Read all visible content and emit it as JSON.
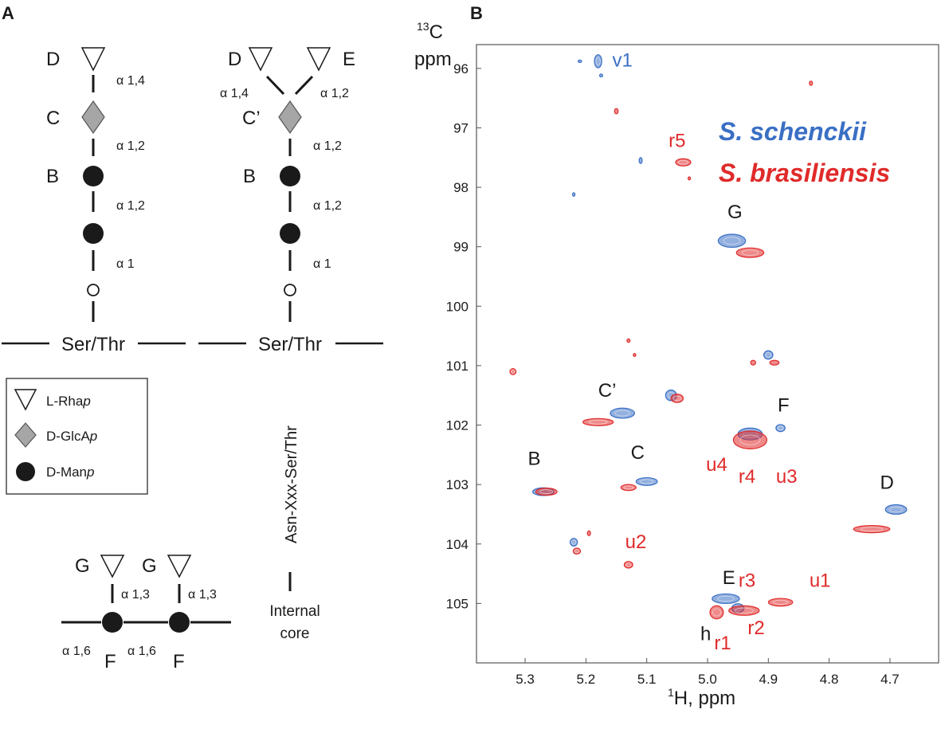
{
  "panel_a": {
    "label": "A",
    "left_structure": {
      "residues": [
        "D",
        "C",
        "B"
      ],
      "links": [
        "α 1,4",
        "α 1,2",
        "α 1,2",
        "α 1"
      ],
      "base": "Ser/Thr"
    },
    "right_structure": {
      "residues": [
        "D",
        "E",
        "C’",
        "B"
      ],
      "links": [
        "α 1,4",
        "α 1,2",
        "α 1,2",
        "α 1,2",
        "α 1"
      ],
      "base": "Ser/Thr"
    },
    "legend": [
      {
        "symbol": "triangle-icon",
        "pre": "L-Rha",
        "italic": "p"
      },
      {
        "symbol": "diamond-icon",
        "pre": "D-GlcA",
        "italic": "p"
      },
      {
        "symbol": "circle-icon",
        "pre": "D-Man",
        "italic": "p"
      }
    ],
    "nglycan": {
      "vertical_label": "Asn-Xxx-Ser/Thr",
      "core_line1": "Internal",
      "core_line2": "core",
      "residues": [
        "G",
        "G",
        "F",
        "F"
      ],
      "links": [
        "α 1,3",
        "α 1,3",
        "α 1,6",
        "α 1,6"
      ]
    }
  },
  "panel_b": {
    "label": "B",
    "chart_data": {
      "type": "scatter",
      "title": "",
      "xlabel_sup": "1",
      "xlabel": "H, ppm",
      "ylabel_sup": "13",
      "ylabel_line1": "C",
      "ylabel_line2": "ppm",
      "xlim": [
        5.38,
        4.62
      ],
      "ylim": [
        95.6,
        106.0
      ],
      "x_ticks": [
        "5.3",
        "5.2",
        "5.1",
        "5.0",
        "4.9",
        "4.8",
        "4.7"
      ],
      "x_tick_values": [
        5.3,
        5.2,
        5.1,
        5.0,
        4.9,
        4.8,
        4.7
      ],
      "y_ticks": [
        "96",
        "97",
        "98",
        "99",
        "100",
        "101",
        "102",
        "103",
        "104",
        "105"
      ],
      "y_tick_values": [
        96,
        97,
        98,
        99,
        100,
        101,
        102,
        103,
        104,
        105
      ],
      "colors": {
        "schenckii": "#3a6fc4",
        "brasiliensis": "#e02a2a",
        "label": "#1a1a1a"
      },
      "legend": [
        "S. schenckii",
        "S. brasiliensis"
      ],
      "series": [
        {
          "name": "S. schenckii",
          "color_key": "schenckii",
          "peaks": [
            {
              "x": 5.18,
              "y": 95.88,
              "w": 0.012,
              "h": 0.22
            },
            {
              "x": 5.21,
              "y": 95.88,
              "w": 0.006,
              "h": 0.04
            },
            {
              "x": 5.175,
              "y": 96.12,
              "w": 0.005,
              "h": 0.05
            },
            {
              "x": 5.11,
              "y": 97.55,
              "w": 0.005,
              "h": 0.1
            },
            {
              "x": 5.22,
              "y": 98.12,
              "w": 0.004,
              "h": 0.06
            },
            {
              "x": 4.96,
              "y": 98.9,
              "w": 0.045,
              "h": 0.22
            },
            {
              "x": 4.9,
              "y": 100.82,
              "w": 0.015,
              "h": 0.14
            },
            {
              "x": 5.14,
              "y": 101.8,
              "w": 0.04,
              "h": 0.17
            },
            {
              "x": 5.06,
              "y": 101.5,
              "w": 0.018,
              "h": 0.18
            },
            {
              "x": 4.93,
              "y": 102.15,
              "w": 0.04,
              "h": 0.2
            },
            {
              "x": 4.88,
              "y": 102.05,
              "w": 0.015,
              "h": 0.12
            },
            {
              "x": 5.27,
              "y": 103.12,
              "w": 0.035,
              "h": 0.13
            },
            {
              "x": 5.1,
              "y": 102.95,
              "w": 0.035,
              "h": 0.13
            },
            {
              "x": 4.69,
              "y": 103.42,
              "w": 0.035,
              "h": 0.16
            },
            {
              "x": 5.22,
              "y": 103.97,
              "w": 0.012,
              "h": 0.13
            },
            {
              "x": 4.97,
              "y": 104.92,
              "w": 0.045,
              "h": 0.16
            },
            {
              "x": 4.95,
              "y": 105.08,
              "w": 0.02,
              "h": 0.15
            }
          ]
        },
        {
          "name": "S. brasiliensis",
          "color_key": "brasiliensis",
          "peaks": [
            {
              "x": 4.83,
              "y": 96.25,
              "w": 0.005,
              "h": 0.07
            },
            {
              "x": 5.15,
              "y": 96.72,
              "w": 0.006,
              "h": 0.09
            },
            {
              "x": 5.04,
              "y": 97.58,
              "w": 0.025,
              "h": 0.12
            },
            {
              "x": 5.03,
              "y": 97.85,
              "w": 0.004,
              "h": 0.05
            },
            {
              "x": 4.93,
              "y": 99.1,
              "w": 0.045,
              "h": 0.16
            },
            {
              "x": 4.925,
              "y": 100.95,
              "w": 0.008,
              "h": 0.08
            },
            {
              "x": 4.89,
              "y": 100.95,
              "w": 0.015,
              "h": 0.08
            },
            {
              "x": 5.32,
              "y": 101.1,
              "w": 0.01,
              "h": 0.1
            },
            {
              "x": 5.13,
              "y": 100.58,
              "w": 0.005,
              "h": 0.06
            },
            {
              "x": 5.12,
              "y": 100.82,
              "w": 0.004,
              "h": 0.05
            },
            {
              "x": 5.05,
              "y": 101.55,
              "w": 0.02,
              "h": 0.14
            },
            {
              "x": 5.18,
              "y": 101.95,
              "w": 0.05,
              "h": 0.12
            },
            {
              "x": 4.93,
              "y": 102.25,
              "w": 0.055,
              "h": 0.3
            },
            {
              "x": 5.265,
              "y": 103.12,
              "w": 0.035,
              "h": 0.12
            },
            {
              "x": 5.13,
              "y": 103.05,
              "w": 0.025,
              "h": 0.1
            },
            {
              "x": 4.73,
              "y": 103.75,
              "w": 0.06,
              "h": 0.12
            },
            {
              "x": 5.195,
              "y": 103.82,
              "w": 0.005,
              "h": 0.08
            },
            {
              "x": 5.215,
              "y": 104.12,
              "w": 0.012,
              "h": 0.1
            },
            {
              "x": 5.13,
              "y": 104.35,
              "w": 0.014,
              "h": 0.11
            },
            {
              "x": 4.88,
              "y": 104.98,
              "w": 0.04,
              "h": 0.13
            },
            {
              "x": 4.94,
              "y": 105.12,
              "w": 0.05,
              "h": 0.16
            },
            {
              "x": 4.985,
              "y": 105.15,
              "w": 0.022,
              "h": 0.22
            }
          ]
        }
      ],
      "annotations": [
        {
          "text": "v1",
          "x": 5.14,
          "y": 95.85,
          "color_key": "schenckii"
        },
        {
          "text": "r5",
          "x": 5.05,
          "y": 97.2,
          "color_key": "brasiliensis"
        },
        {
          "text": "G",
          "x": 4.955,
          "y": 98.4,
          "color_key": "label"
        },
        {
          "text": "C’",
          "x": 5.165,
          "y": 101.4,
          "color_key": "label"
        },
        {
          "text": "F",
          "x": 4.875,
          "y": 101.65,
          "color_key": "label"
        },
        {
          "text": "u4",
          "x": 4.985,
          "y": 102.65,
          "color_key": "brasiliensis"
        },
        {
          "text": "r4",
          "x": 4.935,
          "y": 102.85,
          "color_key": "brasiliensis"
        },
        {
          "text": "u3",
          "x": 4.87,
          "y": 102.85,
          "color_key": "brasiliensis"
        },
        {
          "text": "B",
          "x": 5.285,
          "y": 102.55,
          "color_key": "label"
        },
        {
          "text": "C",
          "x": 5.115,
          "y": 102.45,
          "color_key": "label"
        },
        {
          "text": "D",
          "x": 4.705,
          "y": 102.95,
          "color_key": "label"
        },
        {
          "text": "u2",
          "x": 5.118,
          "y": 103.95,
          "color_key": "brasiliensis"
        },
        {
          "text": "E",
          "x": 4.965,
          "y": 104.55,
          "color_key": "label"
        },
        {
          "text": "r3",
          "x": 4.935,
          "y": 104.6,
          "color_key": "brasiliensis"
        },
        {
          "text": "u1",
          "x": 4.815,
          "y": 104.6,
          "color_key": "brasiliensis"
        },
        {
          "text": "h",
          "x": 5.003,
          "y": 105.5,
          "color_key": "label"
        },
        {
          "text": "r1",
          "x": 4.975,
          "y": 105.65,
          "color_key": "brasiliensis"
        },
        {
          "text": "r2",
          "x": 4.92,
          "y": 105.4,
          "color_key": "brasiliensis"
        }
      ]
    }
  }
}
